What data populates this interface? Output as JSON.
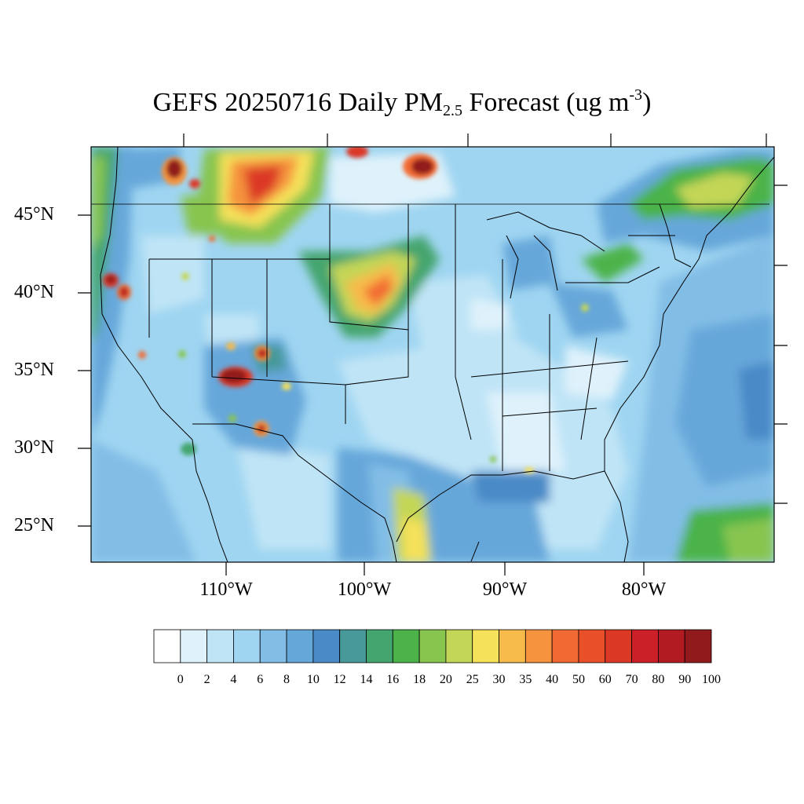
{
  "title": {
    "prefix": "GEFS 20250716 Daily PM",
    "subscript": "2.5",
    "middle": " Forecast (ug m",
    "superscript": "-3",
    "suffix": ")"
  },
  "map": {
    "lat_labels": [
      "45°N",
      "40°N",
      "35°N",
      "30°N",
      "25°N"
    ],
    "lon_labels": [
      "110°W",
      "100°W",
      "90°W",
      "80°W"
    ],
    "colorbar": {
      "labels": [
        "0",
        "2",
        "4",
        "6",
        "8",
        "10",
        "12",
        "14",
        "16",
        "18",
        "20",
        "25",
        "30",
        "35",
        "40",
        "50",
        "60",
        "70",
        "80",
        "90",
        "100"
      ],
      "colors": [
        "#ffffff",
        "#dff2fb",
        "#bfe4f6",
        "#9fd5f1",
        "#82bde6",
        "#66a7da",
        "#4a8ac7",
        "#47999a",
        "#44a56e",
        "#4bb34a",
        "#87c54f",
        "#c4d657",
        "#f5e15a",
        "#f7bb4b",
        "#f5933e",
        "#f26a33",
        "#e9502a",
        "#dc3826",
        "#cc2028",
        "#b31b22",
        "#911a1c"
      ]
    },
    "hotspots": [
      {
        "name": "wyoming-montana-smoke",
        "level": 40
      },
      {
        "name": "nebraska-south-dakota-smoke",
        "level": 35
      },
      {
        "name": "northern-idaho-fire",
        "level": 100
      },
      {
        "name": "arizona-fire",
        "level": 100
      },
      {
        "name": "new-mexico-fire",
        "level": 80
      },
      {
        "name": "minnesota-ontario-fire",
        "level": 100
      },
      {
        "name": "south-texas-plume",
        "level": 30
      },
      {
        "name": "northern-california-fire",
        "level": 80
      }
    ]
  }
}
